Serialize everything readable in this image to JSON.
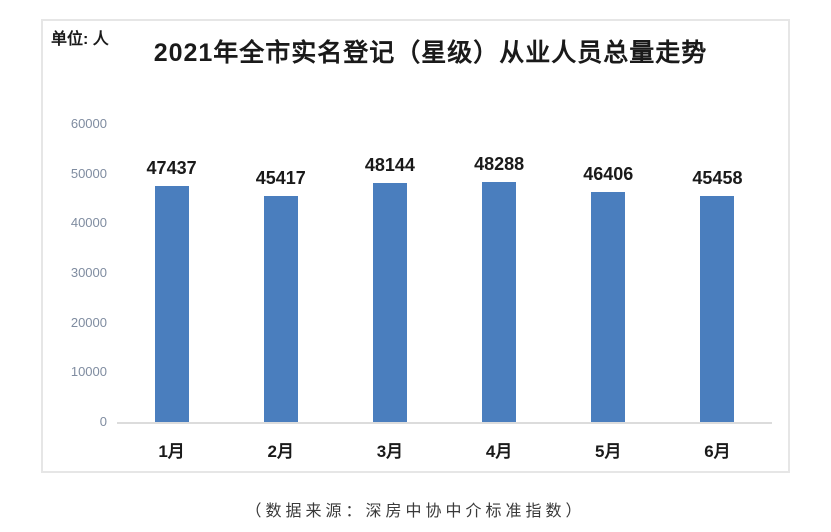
{
  "colors": {
    "bar": "#4A7EBE",
    "axis_label": "#7F8CA0",
    "axis_line": "#DCDCDC",
    "box_border": "#E6E6E6",
    "text": "#1A1A1A",
    "caption": "#3A3A3A"
  },
  "chart_data": {
    "type": "bar",
    "title": "2021年全市实名登记（星级）从业人员总量走势",
    "unit": "单位: 人",
    "categories": [
      "1月",
      "2月",
      "3月",
      "4月",
      "5月",
      "6月"
    ],
    "values": [
      47437,
      45417,
      48144,
      48288,
      46406,
      45458
    ],
    "xlabel": "",
    "ylabel": "",
    "ylim": [
      0,
      60000
    ],
    "yticks": [
      0,
      10000,
      20000,
      30000,
      40000,
      50000,
      60000
    ],
    "grid": false,
    "legend": false,
    "data_labels": true,
    "source": "（数据来源：深房中协中介标准指数）"
  }
}
